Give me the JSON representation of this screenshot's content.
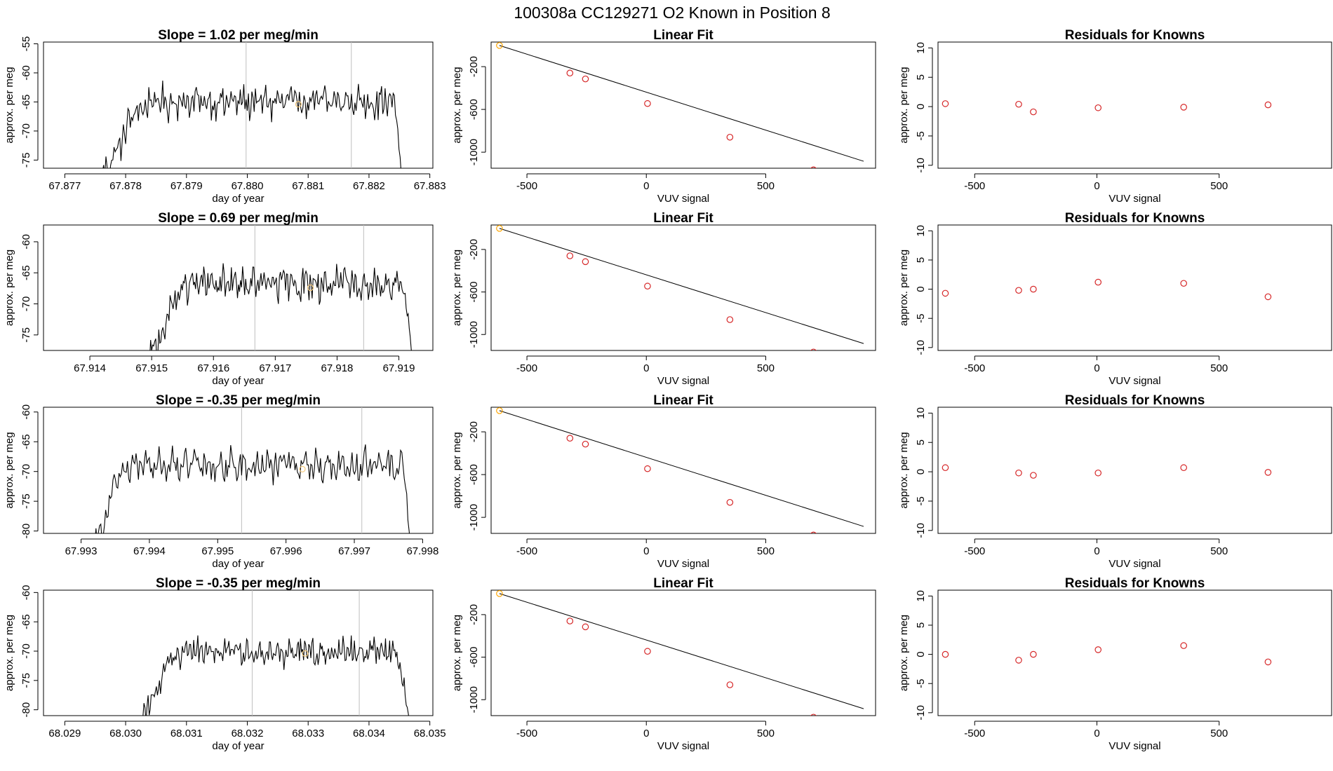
{
  "suptitle": "100308a      CC129271    O2 Known in Position  8",
  "colors": {
    "line": "#000000",
    "frame": "#000000",
    "vline": "#bebebe",
    "fit_point": "#d62728",
    "known_point": "#ffa500",
    "highlight_point": "#f5c97a"
  },
  "chart_data": [
    {
      "type": "line",
      "row": 0,
      "col": 0,
      "title": "Slope =  1.02  per meg/min",
      "xlabel": "day of year",
      "ylabel": "approx. per meg",
      "xlim": [
        67.87665,
        67.88305
      ],
      "ylim": [
        -76.4,
        -54.7
      ],
      "xticks": [
        67.877,
        67.878,
        67.879,
        67.88,
        67.881,
        67.882,
        67.883
      ],
      "xtick_labels": [
        "67.877",
        "67.878",
        "67.879",
        "67.880",
        "67.881",
        "67.882",
        "67.883"
      ],
      "yticks": [
        -75,
        -70,
        -65,
        -60,
        -55
      ],
      "ytick_labels": [
        "-75",
        "-70",
        "-65",
        "-60",
        "-55"
      ],
      "xstart": 67.8776,
      "xend": 67.88255,
      "rise_end": 67.8784,
      "fall_start": 67.8824,
      "y_start": -78,
      "y_rise": -69,
      "y_mean": -65,
      "y_amp": 2.4,
      "y_end": -80,
      "vlines": [
        67.87998,
        67.88171
      ],
      "highlight": {
        "x": 67.88084,
        "y": -65.4
      }
    },
    {
      "type": "scatter",
      "row": 0,
      "col": 1,
      "title": "Linear Fit",
      "xlabel": "VUV signal",
      "ylabel": "approx. per meg",
      "xlim": [
        -650,
        960
      ],
      "ylim": [
        -1150,
        30
      ],
      "xticks": [
        -500,
        0,
        500
      ],
      "xtick_labels": [
        "-500",
        "0",
        "500"
      ],
      "yticks": [
        -1000,
        -600,
        -200
      ],
      "ytick_labels": [
        "-1000",
        "-600",
        "-200"
      ],
      "line": {
        "x0": -615,
        "y0": -2,
        "x1": 910,
        "y1": -1085
      },
      "points": [
        {
          "x": -615,
          "y": -2,
          "known": true
        },
        {
          "x": -320,
          "y": -260
        },
        {
          "x": -255,
          "y": -315
        },
        {
          "x": 5,
          "y": -545
        },
        {
          "x": 350,
          "y": -860
        },
        {
          "x": 700,
          "y": -1165
        }
      ]
    },
    {
      "type": "scatter",
      "row": 0,
      "col": 2,
      "title": "Residuals for Knowns",
      "xlabel": "VUV signal",
      "ylabel": "approx. per meg",
      "xlim": [
        -650,
        960
      ],
      "ylim": [
        -10.5,
        11
      ],
      "xticks": [
        -500,
        0,
        500
      ],
      "xtick_labels": [
        "-500",
        "0",
        "500"
      ],
      "yticks": [
        -10,
        -5,
        0,
        5,
        10
      ],
      "ytick_labels": [
        "-10",
        "-5",
        "0",
        "5",
        "10"
      ],
      "points": [
        {
          "x": -620,
          "y": 0.5
        },
        {
          "x": -320,
          "y": 0.4
        },
        {
          "x": -260,
          "y": -0.9
        },
        {
          "x": 5,
          "y": -0.2
        },
        {
          "x": 355,
          "y": -0.1
        },
        {
          "x": 700,
          "y": 0.3
        }
      ]
    },
    {
      "type": "line",
      "row": 1,
      "col": 0,
      "title": "Slope =  0.69  per meg/min",
      "xlabel": "day of year",
      "ylabel": "approx. per meg",
      "xlim": [
        67.91325,
        67.91955
      ],
      "ylim": [
        -77.5,
        -57.3
      ],
      "xticks": [
        67.914,
        67.915,
        67.916,
        67.917,
        67.918,
        67.919
      ],
      "xtick_labels": [
        "67.914",
        "67.915",
        "67.916",
        "67.917",
        "67.918",
        "67.919"
      ],
      "yticks": [
        -75,
        -70,
        -65,
        -60
      ],
      "ytick_labels": [
        "-75",
        "-70",
        "-65",
        "-60"
      ],
      "xstart": 67.91495,
      "xend": 67.91925,
      "rise_end": 67.9156,
      "fall_start": 67.919,
      "y_start": -79,
      "y_rise": -71,
      "y_mean": -66.8,
      "y_amp": 2.2,
      "y_end": -80,
      "vlines": [
        67.91667,
        67.91843
      ],
      "highlight": {
        "x": 67.91757,
        "y": -67.4
      }
    },
    {
      "type": "scatter",
      "row": 1,
      "col": 1,
      "title": "Linear Fit",
      "xlabel": "VUV signal",
      "ylabel": "approx. per meg",
      "xlim": [
        -650,
        960
      ],
      "ylim": [
        -1150,
        30
      ],
      "xticks": [
        -500,
        0,
        500
      ],
      "xtick_labels": [
        "-500",
        "0",
        "500"
      ],
      "yticks": [
        -1000,
        -600,
        -200
      ],
      "ytick_labels": [
        "-1000",
        "-600",
        "-200"
      ],
      "line": {
        "x0": -615,
        "y0": -2,
        "x1": 910,
        "y1": -1085
      },
      "points": [
        {
          "x": -615,
          "y": -2,
          "known": true
        },
        {
          "x": -320,
          "y": -260
        },
        {
          "x": -255,
          "y": -315
        },
        {
          "x": 5,
          "y": -545
        },
        {
          "x": 350,
          "y": -860
        },
        {
          "x": 700,
          "y": -1165
        }
      ]
    },
    {
      "type": "scatter",
      "row": 1,
      "col": 2,
      "title": "Residuals for Knowns",
      "xlabel": "VUV signal",
      "ylabel": "approx. per meg",
      "xlim": [
        -650,
        960
      ],
      "ylim": [
        -10.5,
        11
      ],
      "xticks": [
        -500,
        0,
        500
      ],
      "xtick_labels": [
        "-500",
        "0",
        "500"
      ],
      "yticks": [
        -10,
        -5,
        0,
        5,
        10
      ],
      "ytick_labels": [
        "-10",
        "-5",
        "0",
        "5",
        "10"
      ],
      "points": [
        {
          "x": -620,
          "y": -0.7
        },
        {
          "x": -320,
          "y": -0.2
        },
        {
          "x": -260,
          "y": 0.0
        },
        {
          "x": 5,
          "y": 1.2
        },
        {
          "x": 355,
          "y": 1.0
        },
        {
          "x": 700,
          "y": -1.3
        }
      ]
    },
    {
      "type": "line",
      "row": 2,
      "col": 0,
      "title": "Slope =  -0.35  per meg/min",
      "xlabel": "day of year",
      "ylabel": "approx. per meg",
      "xlim": [
        67.99245,
        67.99815
      ],
      "ylim": [
        -80.4,
        -59.2
      ],
      "xticks": [
        67.993,
        67.994,
        67.995,
        67.996,
        67.997,
        67.998
      ],
      "xtick_labels": [
        "67.993",
        "67.994",
        "67.995",
        "67.996",
        "67.997",
        "67.998"
      ],
      "yticks": [
        -80,
        -75,
        -70,
        -65,
        -60
      ],
      "ytick_labels": [
        "-80",
        "-75",
        "-70",
        "-65",
        "-60"
      ],
      "xstart": 67.9932,
      "xend": 67.99782,
      "rise_end": 67.9937,
      "fall_start": 67.9977,
      "y_start": -83,
      "y_rise": -73,
      "y_mean": -69.0,
      "y_amp": 2.2,
      "y_end": -82,
      "vlines": [
        67.99535,
        67.99711
      ],
      "highlight": {
        "x": 67.99624,
        "y": -69.6
      }
    },
    {
      "type": "scatter",
      "row": 2,
      "col": 1,
      "title": "Linear Fit",
      "xlabel": "VUV signal",
      "ylabel": "approx. per meg",
      "xlim": [
        -650,
        960
      ],
      "ylim": [
        -1150,
        30
      ],
      "xticks": [
        -500,
        0,
        500
      ],
      "xtick_labels": [
        "-500",
        "0",
        "500"
      ],
      "yticks": [
        -1000,
        -600,
        -200
      ],
      "ytick_labels": [
        "-1000",
        "-600",
        "-200"
      ],
      "line": {
        "x0": -615,
        "y0": -2,
        "x1": 910,
        "y1": -1085
      },
      "points": [
        {
          "x": -615,
          "y": -2,
          "known": true
        },
        {
          "x": -320,
          "y": -260
        },
        {
          "x": -255,
          "y": -315
        },
        {
          "x": 5,
          "y": -545
        },
        {
          "x": 350,
          "y": -860
        },
        {
          "x": 700,
          "y": -1165
        }
      ]
    },
    {
      "type": "scatter",
      "row": 2,
      "col": 2,
      "title": "Residuals for Knowns",
      "xlabel": "VUV signal",
      "ylabel": "approx. per meg",
      "xlim": [
        -650,
        960
      ],
      "ylim": [
        -10.5,
        11
      ],
      "xticks": [
        -500,
        0,
        500
      ],
      "xtick_labels": [
        "-500",
        "0",
        "500"
      ],
      "yticks": [
        -10,
        -5,
        0,
        5,
        10
      ],
      "ytick_labels": [
        "-10",
        "-5",
        "0",
        "5",
        "10"
      ],
      "points": [
        {
          "x": -620,
          "y": 0.7
        },
        {
          "x": -320,
          "y": -0.2
        },
        {
          "x": -260,
          "y": -0.6
        },
        {
          "x": 5,
          "y": -0.2
        },
        {
          "x": 355,
          "y": 0.7
        },
        {
          "x": 700,
          "y": -0.1
        }
      ]
    },
    {
      "type": "line",
      "row": 3,
      "col": 0,
      "title": "Slope =  -0.35  per meg/min",
      "xlabel": "day of year",
      "ylabel": "approx. per meg",
      "xlim": [
        68.02865,
        68.03505
      ],
      "ylim": [
        -81.0,
        -59.6
      ],
      "xticks": [
        68.029,
        68.03,
        68.031,
        68.032,
        68.033,
        68.034,
        68.035
      ],
      "xtick_labels": [
        "68.029",
        "68.030",
        "68.031",
        "68.032",
        "68.033",
        "68.034",
        "68.035"
      ],
      "yticks": [
        -80,
        -75,
        -70,
        -65,
        -60
      ],
      "ytick_labels": [
        "-80",
        "-75",
        "-70",
        "-65",
        "-60"
      ],
      "xstart": 68.03025,
      "xend": 68.03468,
      "rise_end": 68.0309,
      "fall_start": 68.0344,
      "y_start": -82,
      "y_rise": -74,
      "y_mean": -70.0,
      "y_amp": 2.0,
      "y_end": -83,
      "vlines": [
        68.03208,
        68.03384
      ],
      "highlight": {
        "x": 68.03295,
        "y": -70.4
      }
    },
    {
      "type": "scatter",
      "row": 3,
      "col": 1,
      "title": "Linear Fit",
      "xlabel": "VUV signal",
      "ylabel": "approx. per meg",
      "xlim": [
        -650,
        960
      ],
      "ylim": [
        -1150,
        30
      ],
      "xticks": [
        -500,
        0,
        500
      ],
      "xtick_labels": [
        "-500",
        "0",
        "500"
      ],
      "yticks": [
        -1000,
        -600,
        -200
      ],
      "ytick_labels": [
        "-1000",
        "-600",
        "-200"
      ],
      "line": {
        "x0": -615,
        "y0": -2,
        "x1": 910,
        "y1": -1085
      },
      "points": [
        {
          "x": -615,
          "y": -2,
          "known": true
        },
        {
          "x": -320,
          "y": -260
        },
        {
          "x": -255,
          "y": -315
        },
        {
          "x": 5,
          "y": -545
        },
        {
          "x": 350,
          "y": -860
        },
        {
          "x": 700,
          "y": -1165
        }
      ]
    },
    {
      "type": "scatter",
      "row": 3,
      "col": 2,
      "title": "Residuals for Knowns",
      "xlabel": "VUV signal",
      "ylabel": "approx. per meg",
      "xlim": [
        -650,
        960
      ],
      "ylim": [
        -10.5,
        11
      ],
      "xticks": [
        -500,
        0,
        500
      ],
      "xtick_labels": [
        "-500",
        "0",
        "500"
      ],
      "yticks": [
        -10,
        -5,
        0,
        5,
        10
      ],
      "ytick_labels": [
        "-10",
        "-5",
        "0",
        "5",
        "10"
      ],
      "points": [
        {
          "x": -620,
          "y": 0.0
        },
        {
          "x": -320,
          "y": -1.0
        },
        {
          "x": -260,
          "y": 0.0
        },
        {
          "x": 5,
          "y": 0.8
        },
        {
          "x": 355,
          "y": 1.5
        },
        {
          "x": 700,
          "y": -1.3
        }
      ]
    }
  ]
}
